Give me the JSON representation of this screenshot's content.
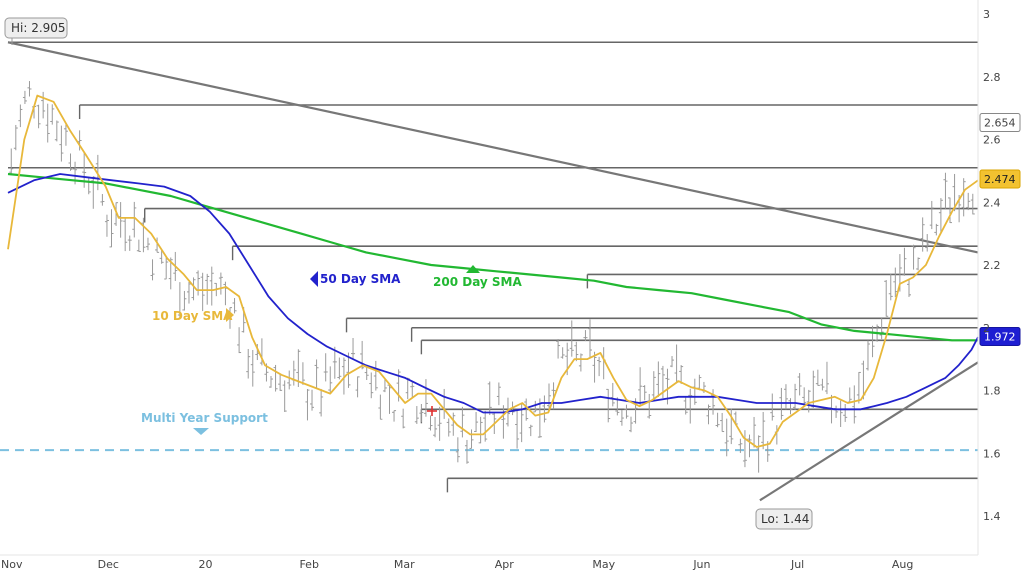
{
  "chart_data": {
    "type": "ohlc_bar_with_moving_averages",
    "title": "",
    "xlabel": "",
    "ylabel": "",
    "ylim": [
      1.3,
      3.05
    ],
    "yticks": [
      "3",
      "2.8",
      "2.6",
      "2.4",
      "2.2",
      "2",
      "1.8",
      "1.6",
      "1.4"
    ],
    "ytick_values": [
      3.0,
      2.8,
      2.6,
      2.4,
      2.2,
      2.0,
      1.8,
      1.6,
      1.4
    ],
    "xticks": [
      "Nov",
      "Dec",
      "20",
      "Feb",
      "Mar",
      "Apr",
      "May",
      "Jun",
      "Jul",
      "Aug"
    ],
    "xtick_days": [
      0,
      30,
      61,
      92,
      121,
      152,
      182,
      213,
      243,
      274
    ],
    "xlim_days": [
      0,
      298
    ],
    "colors": {
      "price_bars": "#9a9a9a",
      "sma10": "#e8b83a",
      "sma50": "#2222cc",
      "sma200": "#22b832",
      "resistance": "#666666",
      "support_dashed": "#7cc0e0",
      "trendline": "#777777"
    },
    "series": [
      {
        "name": "10 Day SMA",
        "points": [
          [
            0,
            2.25
          ],
          [
            5,
            2.6
          ],
          [
            9,
            2.74
          ],
          [
            14,
            2.72
          ],
          [
            19,
            2.63
          ],
          [
            24,
            2.55
          ],
          [
            30,
            2.45
          ],
          [
            34,
            2.35
          ],
          [
            39,
            2.35
          ],
          [
            44,
            2.3
          ],
          [
            49,
            2.22
          ],
          [
            54,
            2.17
          ],
          [
            58,
            2.12
          ],
          [
            63,
            2.12
          ],
          [
            67,
            2.13
          ],
          [
            71,
            2.1
          ],
          [
            75,
            1.97
          ],
          [
            79,
            1.88
          ],
          [
            84,
            1.85
          ],
          [
            89,
            1.83
          ],
          [
            94,
            1.81
          ],
          [
            99,
            1.79
          ],
          [
            104,
            1.85
          ],
          [
            109,
            1.88
          ],
          [
            114,
            1.86
          ],
          [
            118,
            1.81
          ],
          [
            122,
            1.76
          ],
          [
            126,
            1.79
          ],
          [
            130,
            1.79
          ],
          [
            134,
            1.74
          ],
          [
            138,
            1.69
          ],
          [
            142,
            1.66
          ],
          [
            146,
            1.66
          ],
          [
            150,
            1.7
          ],
          [
            154,
            1.74
          ],
          [
            158,
            1.76
          ],
          [
            162,
            1.72
          ],
          [
            166,
            1.73
          ],
          [
            170,
            1.84
          ],
          [
            174,
            1.9
          ],
          [
            178,
            1.9
          ],
          [
            182,
            1.92
          ],
          [
            186,
            1.84
          ],
          [
            190,
            1.77
          ],
          [
            194,
            1.75
          ],
          [
            198,
            1.77
          ],
          [
            202,
            1.8
          ],
          [
            206,
            1.83
          ],
          [
            210,
            1.81
          ],
          [
            214,
            1.8
          ],
          [
            218,
            1.78
          ],
          [
            222,
            1.72
          ],
          [
            226,
            1.65
          ],
          [
            230,
            1.62
          ],
          [
            234,
            1.63
          ],
          [
            238,
            1.7
          ],
          [
            242,
            1.73
          ],
          [
            246,
            1.76
          ],
          [
            250,
            1.77
          ],
          [
            254,
            1.78
          ],
          [
            258,
            1.76
          ],
          [
            262,
            1.77
          ],
          [
            266,
            1.84
          ],
          [
            270,
            1.98
          ],
          [
            274,
            2.14
          ],
          [
            278,
            2.16
          ],
          [
            282,
            2.2
          ],
          [
            286,
            2.29
          ],
          [
            290,
            2.37
          ],
          [
            294,
            2.44
          ],
          [
            298,
            2.47
          ]
        ]
      },
      {
        "name": "50 Day SMA",
        "points": [
          [
            0,
            2.43
          ],
          [
            8,
            2.47
          ],
          [
            16,
            2.49
          ],
          [
            24,
            2.48
          ],
          [
            32,
            2.47
          ],
          [
            40,
            2.46
          ],
          [
            48,
            2.45
          ],
          [
            56,
            2.42
          ],
          [
            62,
            2.37
          ],
          [
            68,
            2.3
          ],
          [
            74,
            2.2
          ],
          [
            80,
            2.1
          ],
          [
            86,
            2.03
          ],
          [
            92,
            1.98
          ],
          [
            98,
            1.94
          ],
          [
            104,
            1.91
          ],
          [
            110,
            1.88
          ],
          [
            116,
            1.86
          ],
          [
            122,
            1.84
          ],
          [
            128,
            1.81
          ],
          [
            134,
            1.78
          ],
          [
            140,
            1.76
          ],
          [
            146,
            1.73
          ],
          [
            152,
            1.73
          ],
          [
            158,
            1.74
          ],
          [
            164,
            1.76
          ],
          [
            170,
            1.76
          ],
          [
            176,
            1.77
          ],
          [
            182,
            1.78
          ],
          [
            188,
            1.77
          ],
          [
            194,
            1.76
          ],
          [
            200,
            1.77
          ],
          [
            206,
            1.78
          ],
          [
            212,
            1.78
          ],
          [
            218,
            1.78
          ],
          [
            224,
            1.77
          ],
          [
            230,
            1.76
          ],
          [
            236,
            1.76
          ],
          [
            242,
            1.76
          ],
          [
            248,
            1.75
          ],
          [
            254,
            1.74
          ],
          [
            258,
            1.74
          ],
          [
            262,
            1.74
          ],
          [
            266,
            1.75
          ],
          [
            270,
            1.76
          ],
          [
            276,
            1.78
          ],
          [
            282,
            1.81
          ],
          [
            288,
            1.84
          ],
          [
            292,
            1.88
          ],
          [
            296,
            1.93
          ],
          [
            298,
            1.97
          ]
        ]
      },
      {
        "name": "200 Day SMA",
        "points": [
          [
            0,
            2.49
          ],
          [
            10,
            2.48
          ],
          [
            20,
            2.47
          ],
          [
            30,
            2.46
          ],
          [
            40,
            2.44
          ],
          [
            50,
            2.42
          ],
          [
            60,
            2.39
          ],
          [
            70,
            2.36
          ],
          [
            80,
            2.33
          ],
          [
            90,
            2.3
          ],
          [
            100,
            2.27
          ],
          [
            110,
            2.24
          ],
          [
            120,
            2.22
          ],
          [
            130,
            2.2
          ],
          [
            140,
            2.19
          ],
          [
            150,
            2.18
          ],
          [
            160,
            2.17
          ],
          [
            170,
            2.16
          ],
          [
            180,
            2.15
          ],
          [
            190,
            2.13
          ],
          [
            200,
            2.12
          ],
          [
            210,
            2.11
          ],
          [
            220,
            2.09
          ],
          [
            230,
            2.07
          ],
          [
            240,
            2.05
          ],
          [
            250,
            2.01
          ],
          [
            260,
            1.99
          ],
          [
            270,
            1.98
          ],
          [
            280,
            1.97
          ],
          [
            290,
            1.96
          ],
          [
            298,
            1.96
          ]
        ]
      }
    ],
    "resistance_levels": [
      {
        "y": 2.91,
        "x_start": 0
      },
      {
        "y": 2.71,
        "x_start": 22
      },
      {
        "y": 2.51,
        "x_start": 0
      },
      {
        "y": 2.38,
        "x_start": 42
      },
      {
        "y": 2.26,
        "x_start": 69
      },
      {
        "y": 2.17,
        "x_start": 178
      },
      {
        "y": 2.03,
        "x_start": 104
      },
      {
        "y": 2.0,
        "x_start": 124
      },
      {
        "y": 1.96,
        "x_start": 127
      },
      {
        "y": 1.74,
        "x_start": 127
      },
      {
        "y": 1.52,
        "x_start": 135
      }
    ],
    "support_level": {
      "y": 1.61,
      "label": "Multi Year Support"
    },
    "trendlines": [
      {
        "from": [
          0,
          2.91
        ],
        "to": [
          298,
          2.24
        ]
      },
      {
        "from": [
          231,
          1.45
        ],
        "to": [
          298,
          1.89
        ]
      }
    ],
    "annotations": {
      "hi_label": "Hi: 2.905",
      "lo_label": "Lo: 1.44",
      "sma10_label": "10 Day SMA",
      "sma50_label": "50 Day SMA",
      "sma200_label": "200 Day SMA",
      "support_label": "Multi Year Support"
    },
    "right_axis_badges": [
      {
        "value": "2.654",
        "y": 2.654
      },
      {
        "value": "2.474",
        "y": 2.474
      },
      {
        "value": "1.972",
        "y": 1.972
      }
    ]
  }
}
